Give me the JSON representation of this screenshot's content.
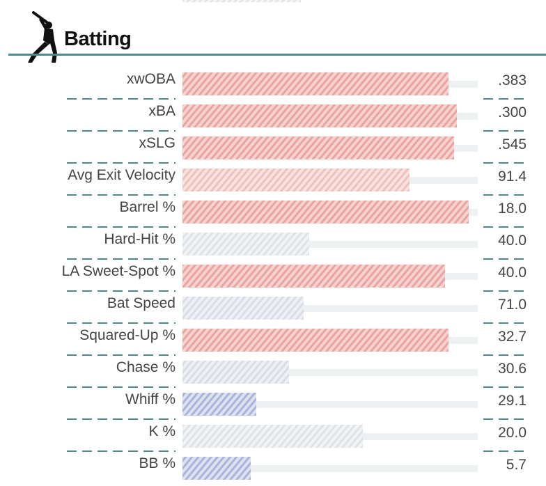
{
  "section": {
    "title": "Batting",
    "icon": "batter-silhouette-icon"
  },
  "colors": {
    "accent_rule": "#4f8a8b",
    "hot": "#e8908b",
    "neutral": "#d9d9d9",
    "cold": "#8f9fce"
  },
  "metrics": [
    {
      "label": "xwOBA",
      "value": ".383",
      "percentile": 90,
      "tone": "hot"
    },
    {
      "label": "xBA",
      "value": ".300",
      "percentile": 93,
      "tone": "hot"
    },
    {
      "label": "xSLG",
      "value": ".545",
      "percentile": 92,
      "tone": "hot"
    },
    {
      "label": "Avg Exit Velocity",
      "value": "91.4",
      "percentile": 77,
      "tone": "warm"
    },
    {
      "label": "Barrel %",
      "value": "18.0",
      "percentile": 97,
      "tone": "hot"
    },
    {
      "label": "Hard-Hit %",
      "value": "40.0",
      "percentile": 43,
      "tone": "gray"
    },
    {
      "label": "LA Sweet-Spot %",
      "value": "40.0",
      "percentile": 89,
      "tone": "hot"
    },
    {
      "label": "Bat Speed",
      "value": "71.0",
      "percentile": 41,
      "tone": "coolgray"
    },
    {
      "label": "Squared-Up %",
      "value": "32.7",
      "percentile": 90,
      "tone": "hot"
    },
    {
      "label": "Chase %",
      "value": "30.6",
      "percentile": 36,
      "tone": "coolgray"
    },
    {
      "label": "Whiff %",
      "value": "29.1",
      "percentile": 25,
      "tone": "cold"
    },
    {
      "label": "K %",
      "value": "20.0",
      "percentile": 61,
      "tone": "gray"
    },
    {
      "label": "BB %",
      "value": "5.7",
      "percentile": 23,
      "tone": "cold"
    }
  ]
}
